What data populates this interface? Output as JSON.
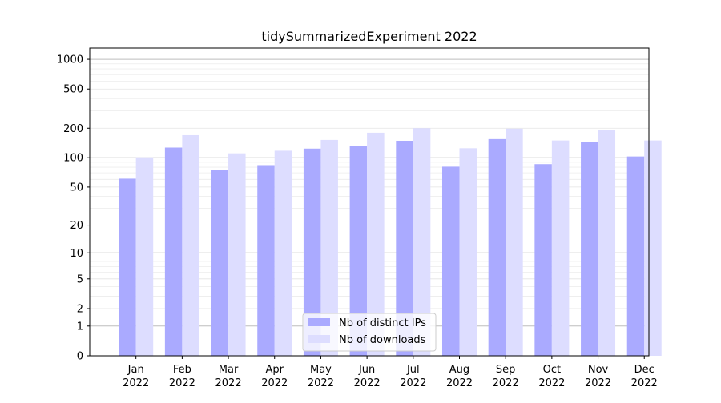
{
  "chart_data": {
    "type": "bar",
    "title": "tidySummarizedExperiment 2022",
    "xlabel": "",
    "ylabel": "",
    "y_scale": "log1p",
    "ylim": [
      0,
      1300
    ],
    "y_ticks": [
      0,
      1,
      2,
      5,
      10,
      20,
      50,
      100,
      200,
      500,
      1000
    ],
    "y_tick_labels": [
      "0",
      "1",
      "2",
      "5",
      "10",
      "20",
      "50",
      "100",
      "200",
      "500",
      "1000"
    ],
    "categories": [
      {
        "month": "Jan",
        "year": "2022"
      },
      {
        "month": "Feb",
        "year": "2022"
      },
      {
        "month": "Mar",
        "year": "2022"
      },
      {
        "month": "Apr",
        "year": "2022"
      },
      {
        "month": "May",
        "year": "2022"
      },
      {
        "month": "Jun",
        "year": "2022"
      },
      {
        "month": "Jul",
        "year": "2022"
      },
      {
        "month": "Aug",
        "year": "2022"
      },
      {
        "month": "Sep",
        "year": "2022"
      },
      {
        "month": "Oct",
        "year": "2022"
      },
      {
        "month": "Nov",
        "year": "2022"
      },
      {
        "month": "Dec",
        "year": "2022"
      }
    ],
    "series": [
      {
        "name": "Nb of distinct IPs",
        "color": "#aaaaff",
        "values": [
          61,
          127,
          75,
          84,
          124,
          131,
          149,
          81,
          155,
          86,
          144,
          103
        ]
      },
      {
        "name": "Nb of downloads",
        "color": "#ddddff",
        "values": [
          101,
          170,
          111,
          118,
          152,
          180,
          200,
          125,
          198,
          150,
          192,
          150
        ]
      }
    ],
    "grid": true,
    "legend_position": "lower-center"
  }
}
